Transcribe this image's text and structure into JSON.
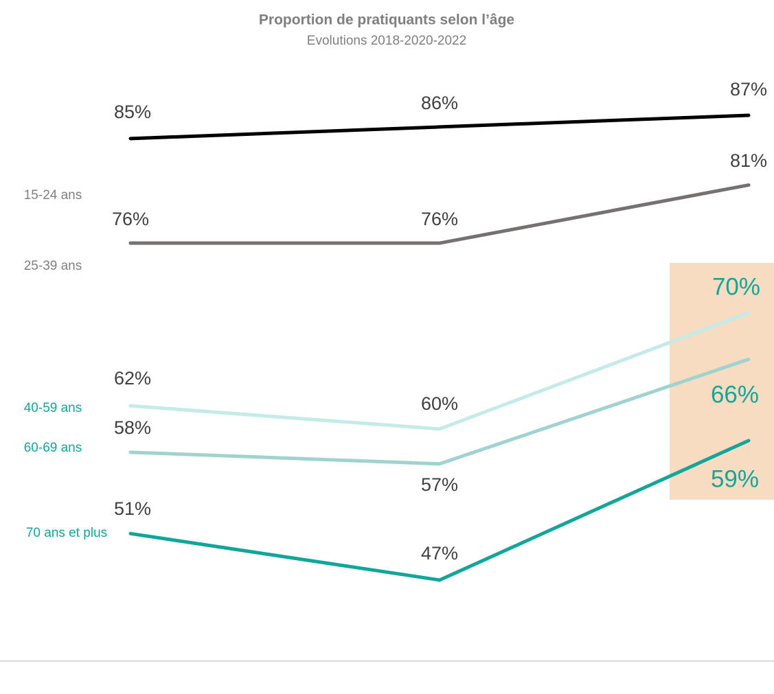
{
  "chart_data": {
    "type": "line",
    "title": "Proportion de pratiquants selon l’âge",
    "subtitle": "Evolutions 2018-2020-2022",
    "categories": [
      "2018",
      "2020",
      "2022"
    ],
    "series": [
      {
        "name": "15-24 ans",
        "color": "#000000",
        "values": [
          85,
          86,
          87
        ],
        "value_labels": [
          "85%",
          "86%",
          "87%"
        ]
      },
      {
        "name": "25-39 ans",
        "color": "#767171",
        "values": [
          76,
          76,
          81
        ],
        "value_labels": [
          "76%",
          "76%",
          "81%"
        ]
      },
      {
        "name": "40-59 ans",
        "color": "#c5ebe9",
        "values": [
          62,
          60,
          70
        ],
        "value_labels": [
          "62%",
          "60%",
          "70%"
        ]
      },
      {
        "name": "60-69 ans",
        "color": "#9fd3cf",
        "values": [
          58,
          57,
          66
        ],
        "value_labels": [
          "58%",
          "57%",
          "66%"
        ]
      },
      {
        "name": "70 ans et plus",
        "color": "#12a69a",
        "values": [
          51,
          47,
          59
        ],
        "value_labels": [
          "51%",
          "47%",
          "59%"
        ]
      }
    ]
  }
}
